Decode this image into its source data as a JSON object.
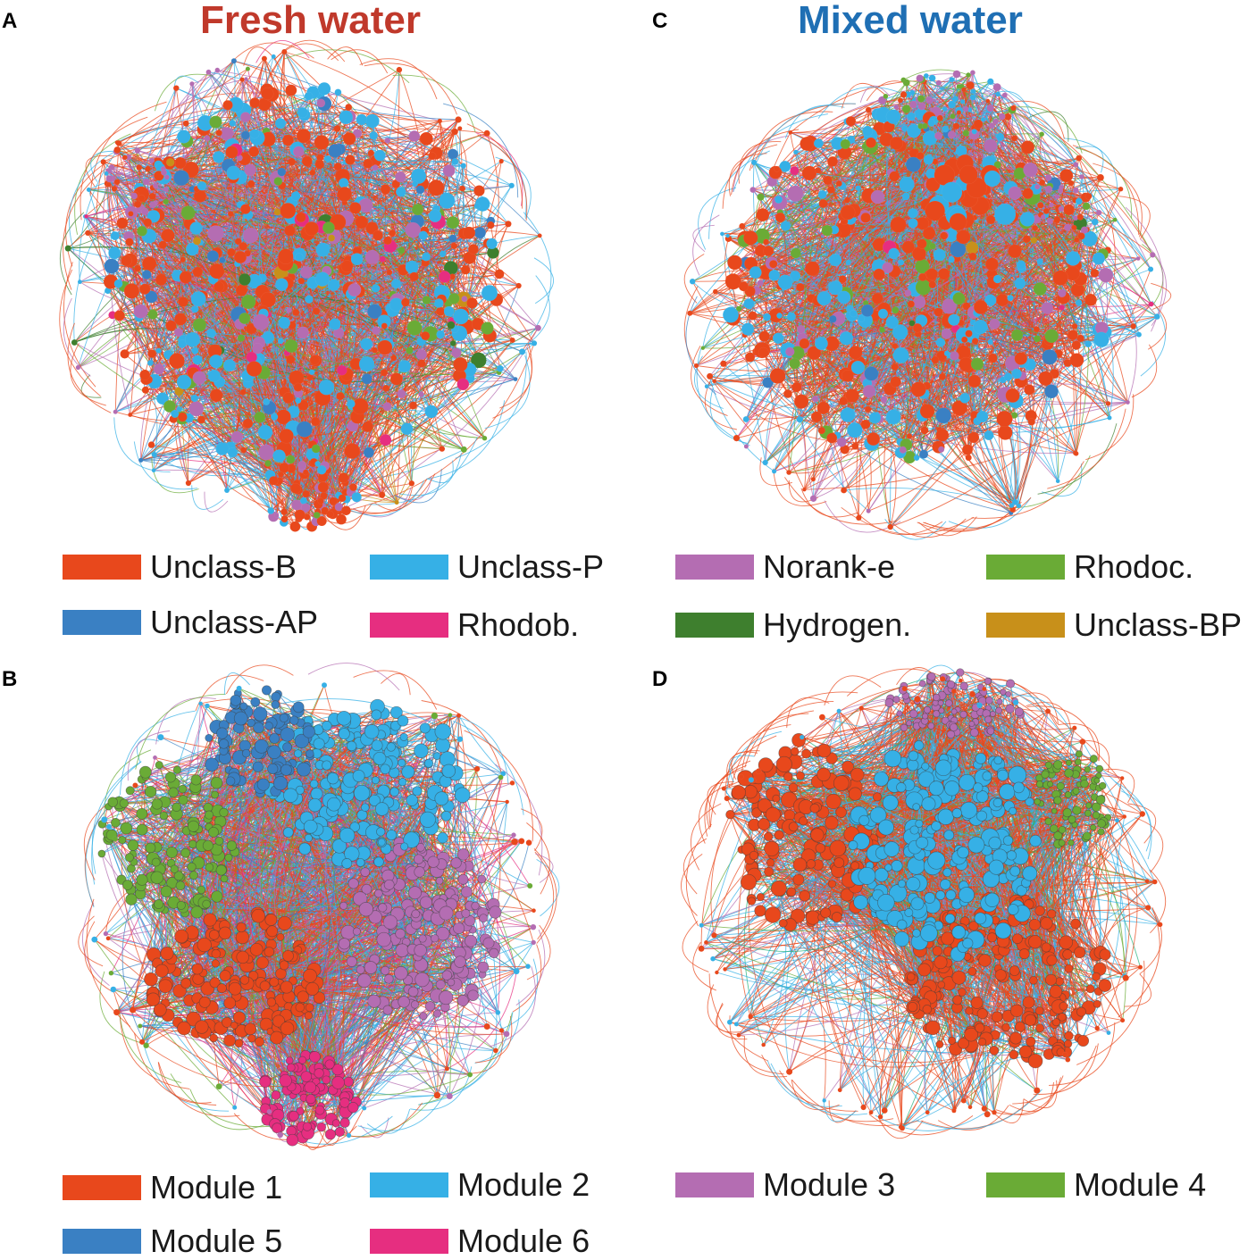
{
  "panels": {
    "A": {
      "letter": "A",
      "title": "Fresh water",
      "title_color": "#c0392b"
    },
    "B": {
      "letter": "B"
    },
    "C": {
      "letter": "C",
      "title": "Mixed water",
      "title_color": "#1f6fb4"
    },
    "D": {
      "letter": "D"
    }
  },
  "taxa_legend": [
    {
      "label": "Unclass-B",
      "color": "#e8481c"
    },
    {
      "label": "Unclass-P",
      "color": "#36b0e6"
    },
    {
      "label": "Norank-e",
      "color": "#b46db2"
    },
    {
      "label": "Rhodoc.",
      "color": "#6aab36"
    },
    {
      "label": "Unclass-AP",
      "color": "#3a80c3"
    },
    {
      "label": "Rhodob.",
      "color": "#e62e80"
    },
    {
      "label": "Hydrogen.",
      "color": "#3e7f2e"
    },
    {
      "label": "Unclass-BP",
      "color": "#c8901a"
    }
  ],
  "module_legend": [
    {
      "label": "Module 1",
      "color": "#e8481c"
    },
    {
      "label": "Module 2",
      "color": "#36b0e6"
    },
    {
      "label": "Module 3",
      "color": "#b46db2"
    },
    {
      "label": "Module 4",
      "color": "#6aab36"
    },
    {
      "label": "Module 5",
      "color": "#3a80c3"
    },
    {
      "label": "Module 6",
      "color": "#e62e80"
    }
  ]
}
